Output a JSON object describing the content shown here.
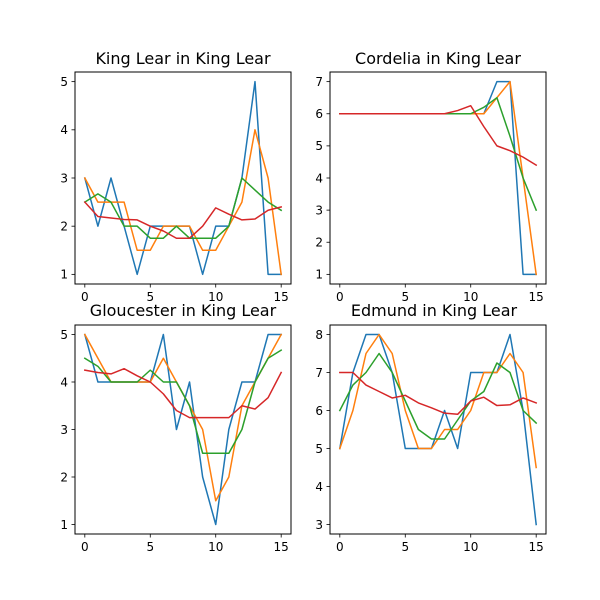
{
  "colors": [
    "#1f77b4",
    "#ff7f0e",
    "#2ca02c",
    "#d62728"
  ],
  "chart_data": [
    {
      "type": "line",
      "title": "King Lear in King Lear",
      "xlabel": "",
      "ylabel": "",
      "xlim": [
        -0.75,
        15.75
      ],
      "ylim": [
        0.8,
        5.2
      ],
      "xticks": [
        0,
        5,
        10,
        15
      ],
      "yticks": [
        1,
        2,
        3,
        4,
        5
      ],
      "x": [
        0,
        1,
        2,
        3,
        4,
        5,
        6,
        7,
        8,
        9,
        10,
        11,
        12,
        13,
        14,
        15
      ],
      "series": [
        {
          "values": [
            3,
            2,
            3,
            2,
            1,
            2,
            2,
            2,
            2,
            1,
            2,
            2,
            3,
            5,
            1,
            1
          ]
        },
        {
          "values": [
            3,
            2.5,
            2.5,
            2.5,
            1.5,
            1.5,
            2,
            2,
            2,
            1.5,
            1.5,
            2,
            2.5,
            4,
            3,
            1
          ]
        },
        {
          "values": [
            2.5,
            2.67,
            2.5,
            2,
            2,
            1.75,
            1.75,
            2,
            1.75,
            1.75,
            1.75,
            2,
            3,
            2.75,
            2.5,
            2.33
          ]
        },
        {
          "values": [
            2.5,
            2.2,
            2.17,
            2.14,
            2.13,
            2,
            1.9,
            1.75,
            1.75,
            2,
            2.38,
            2.25,
            2.13,
            2.15,
            2.33,
            2.4
          ]
        }
      ]
    },
    {
      "type": "line",
      "title": "Cordelia in King Lear",
      "xlabel": "",
      "ylabel": "",
      "xlim": [
        -0.75,
        15.75
      ],
      "ylim": [
        0.7,
        7.3
      ],
      "xticks": [
        0,
        5,
        10,
        15
      ],
      "yticks": [
        1,
        2,
        3,
        4,
        5,
        6,
        7
      ],
      "x": [
        0,
        1,
        2,
        3,
        4,
        5,
        6,
        7,
        8,
        9,
        10,
        11,
        12,
        13,
        14,
        15
      ],
      "series": [
        {
          "values": [
            6,
            6,
            6,
            6,
            6,
            6,
            6,
            6,
            6,
            6,
            6,
            6,
            7,
            7,
            1,
            1
          ]
        },
        {
          "values": [
            6,
            6,
            6,
            6,
            6,
            6,
            6,
            6,
            6,
            6,
            6,
            6,
            6.5,
            7,
            4,
            1
          ]
        },
        {
          "values": [
            6,
            6,
            6,
            6,
            6,
            6,
            6,
            6,
            6,
            6,
            6,
            6.2,
            6.5,
            5.3,
            4,
            3
          ]
        },
        {
          "values": [
            6,
            6,
            6,
            6,
            6,
            6,
            6,
            6,
            6,
            6.1,
            6.25,
            5.6,
            5,
            4.85,
            4.65,
            4.4
          ]
        }
      ]
    },
    {
      "type": "line",
      "title": "Gloucester in King Lear",
      "xlabel": "",
      "ylabel": "",
      "xlim": [
        -0.75,
        15.75
      ],
      "ylim": [
        0.8,
        5.2
      ],
      "xticks": [
        0,
        5,
        10,
        15
      ],
      "yticks": [
        1,
        2,
        3,
        4,
        5
      ],
      "x": [
        0,
        1,
        2,
        3,
        4,
        5,
        6,
        7,
        8,
        9,
        10,
        11,
        12,
        13,
        14,
        15
      ],
      "series": [
        {
          "values": [
            5,
            4,
            4,
            4,
            4,
            4,
            5,
            3,
            4,
            2,
            1,
            3,
            4,
            4,
            5,
            5
          ]
        },
        {
          "values": [
            5,
            4.5,
            4,
            4,
            4,
            4,
            4.5,
            4,
            3.5,
            3,
            1.5,
            2,
            3.5,
            4,
            4.5,
            5
          ]
        },
        {
          "values": [
            4.5,
            4.33,
            4,
            4,
            4,
            4.25,
            4,
            4,
            3.5,
            2.5,
            2.5,
            2.5,
            3,
            4,
            4.5,
            4.67
          ]
        },
        {
          "values": [
            4.25,
            4.2,
            4.17,
            4.28,
            4.13,
            4,
            3.75,
            3.4,
            3.25,
            3.25,
            3.25,
            3.25,
            3.5,
            3.43,
            3.67,
            4.2
          ]
        }
      ]
    },
    {
      "type": "line",
      "title": "Edmund in King Lear",
      "xlabel": "",
      "ylabel": "",
      "xlim": [
        -0.75,
        15.75
      ],
      "ylim": [
        2.75,
        8.25
      ],
      "xticks": [
        0,
        5,
        10,
        15
      ],
      "yticks": [
        3,
        4,
        5,
        6,
        7,
        8
      ],
      "x": [
        0,
        1,
        2,
        3,
        4,
        5,
        6,
        7,
        8,
        9,
        10,
        11,
        12,
        13,
        14,
        15
      ],
      "series": [
        {
          "values": [
            5,
            7,
            8,
            8,
            7,
            5,
            5,
            5,
            6,
            5,
            7,
            7,
            7,
            8,
            6,
            3
          ]
        },
        {
          "values": [
            5,
            6,
            7.5,
            8,
            7.5,
            6,
            5,
            5,
            5.5,
            5.5,
            6,
            7,
            7,
            7.5,
            7,
            4.5
          ]
        },
        {
          "values": [
            6,
            6.67,
            7,
            7.5,
            7,
            6.25,
            5.5,
            5.25,
            5.25,
            5.75,
            6.25,
            6.5,
            7.25,
            7,
            6,
            5.67
          ]
        },
        {
          "values": [
            7,
            7,
            6.67,
            6.5,
            6.33,
            6.4,
            6.2,
            6.07,
            5.93,
            5.9,
            6.25,
            6.35,
            6.13,
            6.15,
            6.33,
            6.2
          ]
        }
      ]
    }
  ]
}
